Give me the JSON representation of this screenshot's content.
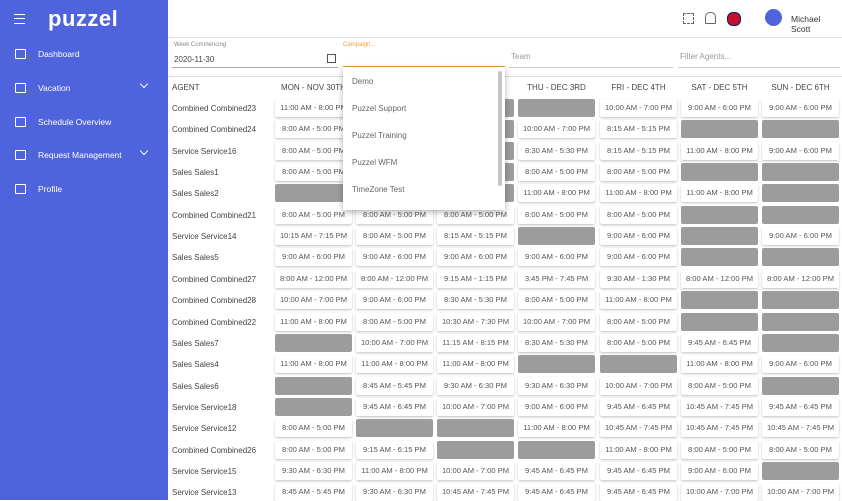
{
  "sidebar": {
    "logo": "puzzel",
    "menu": [
      {
        "label": "Dashboard",
        "expandable": false
      },
      {
        "label": "Vacation",
        "expandable": true
      },
      {
        "label": "Schedule Overview",
        "expandable": false
      },
      {
        "label": "Request Management",
        "expandable": true
      },
      {
        "label": "Profile",
        "expandable": false
      }
    ]
  },
  "header": {
    "user": "Michael Scott"
  },
  "filters": {
    "week_label": "Week Commencing",
    "week_value": "2020-11-30",
    "campaign_placeholder": "Campaign...",
    "team_placeholder": "Team",
    "agents_placeholder": "Filter Agents..."
  },
  "dropdown": {
    "options": [
      "Demo",
      "Puzzel Support",
      "Puzzel Training",
      "Puzzel WFM",
      "TimeZone Test"
    ]
  },
  "table": {
    "columns": [
      "AGENT",
      "MON - NOV 30TH",
      null,
      null,
      "THU - DEC 3RD",
      "FRI - DEC 4TH",
      "SAT - DEC 5TH",
      "SUN - DEC 6TH"
    ],
    "rows": [
      [
        "Combined Combined23",
        "11:00 AM - 8:00 PM",
        null,
        null,
        null,
        "10:00 AM - 7:00 PM",
        "9:00 AM - 6:00 PM",
        "9:00 AM - 6:00 PM"
      ],
      [
        "Combined Combined24",
        "8:00 AM - 5:00 PM",
        null,
        null,
        "10:00 AM - 7:00 PM",
        "8:15 AM - 5:15 PM",
        null,
        null
      ],
      [
        "Service Service16",
        "8:00 AM - 5:00 PM",
        null,
        null,
        "8:30 AM - 5:30 PM",
        "8:15 AM - 5:15 PM",
        "11:00 AM - 8:00 PM",
        "9:00 AM - 6:00 PM"
      ],
      [
        "Sales Sales1",
        "8:00 AM - 5:00 PM",
        null,
        null,
        "8:00 AM - 5:00 PM",
        "8:00 AM - 5:00 PM",
        null,
        null
      ],
      [
        "Sales Sales2",
        null,
        null,
        null,
        "11:00 AM - 8:00 PM",
        "11:00 AM - 8:00 PM",
        "11:00 AM - 8:00 PM",
        null
      ],
      [
        "Combined Combined21",
        "8:00 AM - 5:00 PM",
        "8:00 AM - 5:00 PM",
        "8:00 AM - 5:00 PM",
        "8:00 AM - 5:00 PM",
        "8:00 AM - 5:00 PM",
        null,
        null
      ],
      [
        "Service Service14",
        "10:15 AM - 7:15 PM",
        "8:00 AM - 5:00 PM",
        "8:15 AM - 5:15 PM",
        null,
        "9:00 AM - 6:00 PM",
        null,
        "9:00 AM - 6:00 PM"
      ],
      [
        "Sales Sales5",
        "9:00 AM - 6:00 PM",
        "9:00 AM - 6:00 PM",
        "9:00 AM - 6:00 PM",
        "9:00 AM - 6:00 PM",
        "9:00 AM - 6:00 PM",
        null,
        null
      ],
      [
        "Combined Combined27",
        "8:00 AM - 12:00 PM",
        "8:00 AM - 12:00 PM",
        "9:15 AM - 1:15 PM",
        "3:45 PM - 7:45 PM",
        "9:30 AM - 1:30 PM",
        "8:00 AM - 12:00 PM",
        "8:00 AM - 12:00 PM"
      ],
      [
        "Combined Combined28",
        "10:00 AM - 7:00 PM",
        "9:00 AM - 6:00 PM",
        "8:30 AM - 5:30 PM",
        "8:00 AM - 5:00 PM",
        "11:00 AM - 8:00 PM",
        null,
        null
      ],
      [
        "Combined Combined22",
        "11:00 AM - 8:00 PM",
        "8:00 AM - 5:00 PM",
        "10:30 AM - 7:30 PM",
        "10:00 AM - 7:00 PM",
        "8:00 AM - 5:00 PM",
        null,
        null
      ],
      [
        "Sales Sales7",
        null,
        "10:00 AM - 7:00 PM",
        "11:15 AM - 8:15 PM",
        "8:30 AM - 5:30 PM",
        "8:00 AM - 5:00 PM",
        "9:45 AM - 6:45 PM",
        null
      ],
      [
        "Sales Sales4",
        "11:00 AM - 8:00 PM",
        "11:00 AM - 8:00 PM",
        "11:00 AM - 8:00 PM",
        null,
        null,
        "11:00 AM - 8:00 PM",
        "9:00 AM - 6:00 PM"
      ],
      [
        "Sales Sales6",
        null,
        "8:45 AM - 5:45 PM",
        "9:30 AM - 6:30 PM",
        "9:30 AM - 6:30 PM",
        "10:00 AM - 7:00 PM",
        "8:00 AM - 5:00 PM",
        null
      ],
      [
        "Service Service18",
        null,
        "9:45 AM - 6:45 PM",
        "10:00 AM - 7:00 PM",
        "9:00 AM - 6:00 PM",
        "9:45 AM - 6:45 PM",
        "10:45 AM - 7:45 PM",
        "9:45 AM - 6:45 PM"
      ],
      [
        "Service Service12",
        "8:00 AM - 5:00 PM",
        null,
        null,
        "11:00 AM - 8:00 PM",
        "10:45 AM - 7:45 PM",
        "10:45 AM - 7:45 PM",
        "10:45 AM - 7:45 PM"
      ],
      [
        "Combined Combined26",
        "8:00 AM - 5:00 PM",
        "9:15 AM - 6:15 PM",
        null,
        null,
        "11:00 AM - 8:00 PM",
        "8:00 AM - 5:00 PM",
        "8:00 AM - 5:00 PM"
      ],
      [
        "Service Service15",
        "9:30 AM - 6:30 PM",
        "11:00 AM - 8:00 PM",
        "10:00 AM - 7:00 PM",
        "9:45 AM - 6:45 PM",
        "9:45 AM - 6:45 PM",
        "9:00 AM - 6:00 PM",
        null
      ],
      [
        "Service Service13",
        "8:45 AM - 5:45 PM",
        "9:30 AM - 6:30 PM",
        "10:45 AM - 7:45 PM",
        "9:45 AM - 6:45 PM",
        "9:45 AM - 6:45 PM",
        "10:00 AM - 7:00 PM",
        "10:00 AM - 7:00 PM"
      ]
    ]
  }
}
